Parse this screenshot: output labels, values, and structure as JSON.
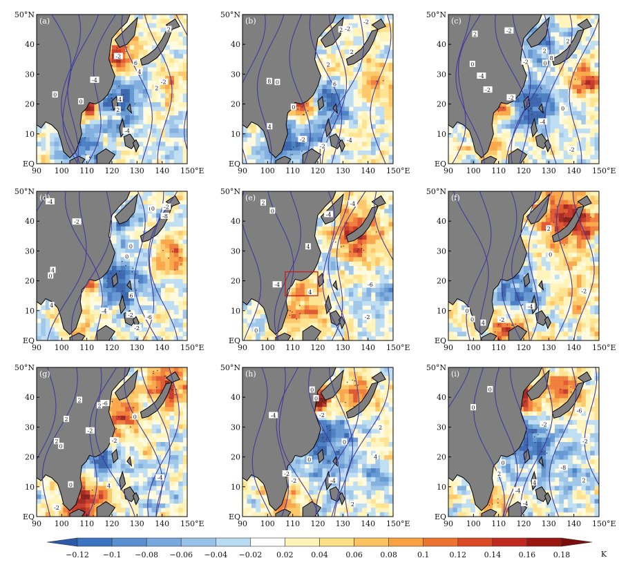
{
  "figure": {
    "panels": [
      {
        "label": "(a)",
        "contour_labels": [
          "4",
          "6",
          "2",
          "4",
          "2",
          "0",
          "-2",
          "-2",
          "-4",
          "-4",
          "0",
          "2"
        ],
        "sst_pattern": "warm_east_china_sea"
      },
      {
        "label": "(b)",
        "contour_labels": [
          "2",
          "2",
          "6",
          "8",
          "4",
          "2",
          "0",
          "-2",
          "-2",
          "-4",
          "-2",
          "0",
          "-2"
        ],
        "sst_pattern": "warm_taiwan_strait"
      },
      {
        "label": "(c)",
        "contour_labels": [
          "-4",
          "2",
          "8",
          "0",
          "-2",
          "2",
          "0",
          "-4",
          "-2",
          "-2",
          "-2",
          "2",
          "-2",
          "0"
        ],
        "sst_pattern": "cool_south_china_sea"
      },
      {
        "label": "(d)",
        "contour_labels": [
          "0",
          "-2",
          "0",
          "-2",
          "0",
          "-2",
          "-4",
          "-6",
          "-8",
          "-4",
          "-2",
          "4",
          "6",
          "4",
          "0",
          "0"
        ],
        "sst_pattern": "cool_south_china_sea"
      },
      {
        "label": "(e)",
        "contour_labels": [
          "-4",
          "0",
          "-2",
          "-4",
          "-6",
          "-4",
          "2",
          "4",
          "4",
          "0"
        ],
        "sst_pattern": "warm_kuroshio"
      },
      {
        "label": "(f)",
        "contour_labels": [
          "-4",
          "0",
          "-2",
          "-2",
          "4",
          "0",
          "2",
          "0"
        ],
        "sst_pattern": "warm_japan"
      },
      {
        "label": "(g)",
        "contour_labels": [
          "-2",
          "0",
          "2",
          "-4",
          "-6",
          "2",
          "-2",
          "0",
          "4",
          "2",
          "2",
          "0",
          "-2"
        ],
        "sst_pattern": "warm_yellow_sea"
      },
      {
        "label": "(h)",
        "contour_labels": [
          "0",
          "-2",
          "-4",
          "0",
          "0",
          "2",
          "4",
          "-2",
          "2",
          "-2",
          "-4",
          "0"
        ],
        "sst_pattern": "warm_bohai"
      },
      {
        "label": "(i)",
        "contour_labels": [
          "-4",
          "0",
          "0",
          "-2",
          "2",
          "2",
          "4",
          "-6",
          "-4",
          "-2",
          "0",
          "-8"
        ],
        "sst_pattern": "warm_bohai"
      }
    ],
    "map": {
      "lon_ticks": [
        "90",
        "100",
        "110",
        "120",
        "130",
        "140",
        "150°E"
      ],
      "lat_ticks": [
        "50°N",
        "40",
        "30",
        "20",
        "10",
        "EQ"
      ],
      "lon_range": [
        90,
        150
      ],
      "lat_range": [
        0,
        50
      ]
    },
    "highlight_box": {
      "panel": "(e)",
      "lon_range": [
        107,
        120
      ],
      "lat_range": [
        15,
        23
      ],
      "color": "#d01818"
    },
    "colorbar": {
      "ticks": [
        "−0.12",
        "−0.1",
        "−0.08",
        "−0.06",
        "−0.04",
        "−0.02",
        "0.02",
        "0.04",
        "0.06",
        "0.08",
        "0.1",
        "0.12",
        "0.14",
        "0.16",
        "0.18"
      ],
      "unit": "K",
      "colors": [
        "#2c5aa8",
        "#3b74c0",
        "#5a8fd2",
        "#78a8de",
        "#98c2ea",
        "#b9dbf4",
        "#ffffff",
        "#fff4b8",
        "#fee089",
        "#fdc35f",
        "#f9a03f",
        "#ef7330",
        "#dc4a25",
        "#c02a1e",
        "#9a1712",
        "#7a0e0c"
      ]
    },
    "colors": {
      "land": "#7f7f7f",
      "coast": "#000000",
      "contour": "#3f3b9e"
    }
  }
}
